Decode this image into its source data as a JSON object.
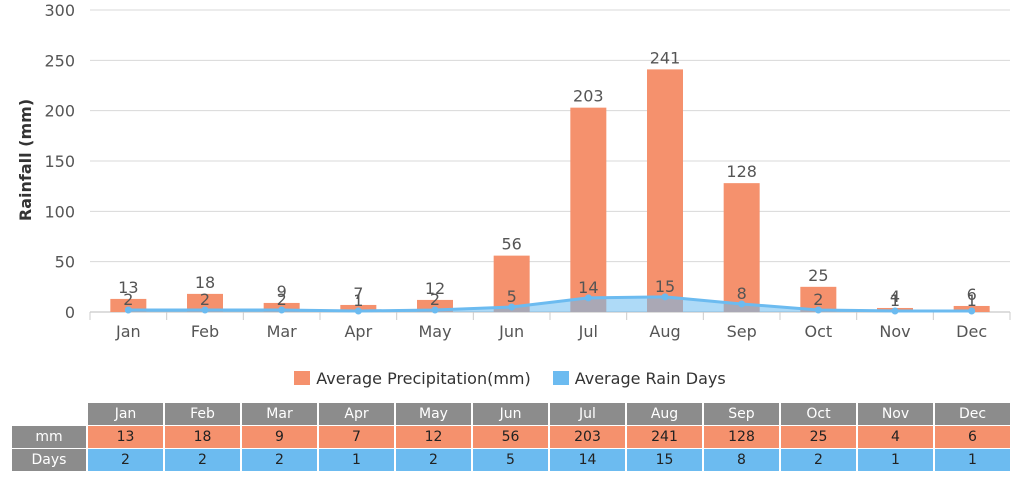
{
  "chart_data": {
    "type": "bar",
    "categories": [
      "Jan",
      "Feb",
      "Mar",
      "Apr",
      "May",
      "Jun",
      "Jul",
      "Aug",
      "Sep",
      "Oct",
      "Nov",
      "Dec"
    ],
    "series": [
      {
        "name": "Average Precipitation(mm)",
        "type": "bar",
        "color": "#f5916d",
        "values": [
          13,
          18,
          9,
          7,
          12,
          56,
          203,
          241,
          128,
          25,
          4,
          6
        ]
      },
      {
        "name": "Average Rain Days",
        "type": "area",
        "color": "#6cbbf0",
        "values": [
          2,
          2,
          2,
          1,
          2,
          5,
          14,
          15,
          8,
          2,
          1,
          1
        ]
      }
    ],
    "ylabel": "Rainfall (mm)",
    "ylim": [
      0,
      300
    ],
    "yticks": [
      0,
      50,
      100,
      150,
      200,
      250,
      300
    ],
    "grid": true,
    "legend_position": "bottom"
  },
  "table": {
    "row_labels": [
      "mm",
      "Days"
    ]
  }
}
